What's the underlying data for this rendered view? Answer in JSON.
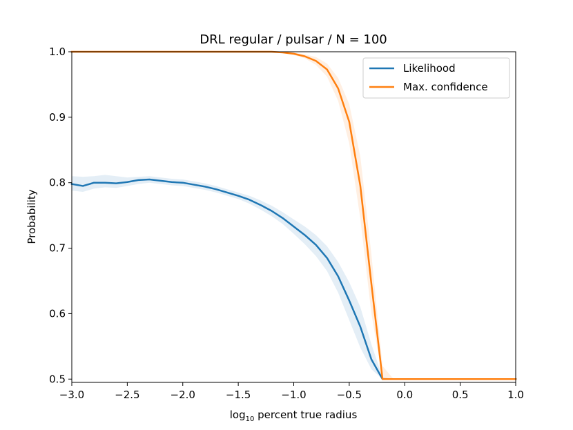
{
  "chart_data": {
    "type": "line",
    "title": "DRL regular / pulsar / N = 100",
    "xlabel_main": "log",
    "xlabel_sub": "10",
    "xlabel_rest": " percent true radius",
    "ylabel": "Probability",
    "xlim": [
      -3.0,
      1.0
    ],
    "ylim": [
      0.495,
      1.0
    ],
    "xticks": [
      -3.0,
      -2.5,
      -2.0,
      -1.5,
      -1.0,
      -0.5,
      0.0,
      0.5,
      1.0
    ],
    "xtick_labels": [
      "−3.0",
      "−2.5",
      "−2.0",
      "−1.5",
      "−1.0",
      "−0.5",
      "0.0",
      "0.5",
      "1.0"
    ],
    "yticks": [
      0.5,
      0.6,
      0.7,
      0.8,
      0.9,
      1.0
    ],
    "ytick_labels": [
      "0.5",
      "0.6",
      "0.7",
      "0.8",
      "0.9",
      "1.0"
    ],
    "legend_position": "top-right",
    "series": [
      {
        "name": "Likelihood",
        "color": "#1f77b4",
        "x": [
          -3.0,
          -2.9,
          -2.8,
          -2.7,
          -2.6,
          -2.5,
          -2.4,
          -2.3,
          -2.2,
          -2.1,
          -2.0,
          -1.9,
          -1.8,
          -1.7,
          -1.6,
          -1.5,
          -1.4,
          -1.3,
          -1.2,
          -1.1,
          -1.0,
          -0.9,
          -0.8,
          -0.7,
          -0.6,
          -0.5,
          -0.4,
          -0.3,
          -0.2,
          -0.1,
          0.0,
          0.1,
          0.2,
          0.3,
          0.4,
          0.5,
          0.6,
          0.7,
          0.8,
          0.9,
          1.0
        ],
        "y": [
          0.798,
          0.795,
          0.8,
          0.8,
          0.799,
          0.801,
          0.804,
          0.805,
          0.803,
          0.801,
          0.8,
          0.797,
          0.794,
          0.79,
          0.785,
          0.78,
          0.774,
          0.766,
          0.757,
          0.746,
          0.733,
          0.72,
          0.705,
          0.685,
          0.657,
          0.62,
          0.58,
          0.53,
          0.5,
          0.5,
          0.5,
          0.5,
          0.5,
          0.5,
          0.5,
          0.5,
          0.5,
          0.5,
          0.5,
          0.5,
          0.5
        ],
        "band_lower": [
          0.788,
          0.786,
          0.791,
          0.793,
          0.792,
          0.795,
          0.798,
          0.8,
          0.798,
          0.796,
          0.795,
          0.792,
          0.789,
          0.785,
          0.78,
          0.775,
          0.768,
          0.759,
          0.749,
          0.737,
          0.722,
          0.706,
          0.688,
          0.665,
          0.632,
          0.59,
          0.548,
          0.515,
          0.5,
          0.5,
          0.5,
          0.5,
          0.5,
          0.5,
          0.5,
          0.5,
          0.5,
          0.5,
          0.5,
          0.5,
          0.5
        ],
        "band_upper": [
          0.81,
          0.809,
          0.81,
          0.812,
          0.81,
          0.808,
          0.809,
          0.81,
          0.808,
          0.806,
          0.805,
          0.802,
          0.799,
          0.795,
          0.79,
          0.785,
          0.78,
          0.773,
          0.765,
          0.755,
          0.744,
          0.733,
          0.72,
          0.703,
          0.679,
          0.648,
          0.61,
          0.553,
          0.503,
          0.5,
          0.5,
          0.5,
          0.5,
          0.5,
          0.5,
          0.5,
          0.5,
          0.5,
          0.5,
          0.5,
          0.5
        ]
      },
      {
        "name": "Max. confidence",
        "color": "#ff7f0e",
        "x": [
          -3.0,
          -2.9,
          -2.8,
          -2.7,
          -2.6,
          -2.5,
          -2.4,
          -2.3,
          -2.2,
          -2.1,
          -2.0,
          -1.9,
          -1.8,
          -1.7,
          -1.6,
          -1.5,
          -1.4,
          -1.3,
          -1.2,
          -1.1,
          -1.0,
          -0.9,
          -0.8,
          -0.7,
          -0.6,
          -0.5,
          -0.4,
          -0.3,
          -0.2,
          -0.1,
          0.0,
          0.1,
          0.2,
          0.3,
          0.4,
          0.5,
          0.6,
          0.7,
          0.8,
          0.9,
          1.0
        ],
        "y": [
          1.0,
          1.0,
          1.0,
          1.0,
          1.0,
          1.0,
          1.0,
          1.0,
          1.0,
          1.0,
          1.0,
          1.0,
          1.0,
          1.0,
          1.0,
          1.0,
          1.0,
          1.0,
          1.0,
          0.999,
          0.997,
          0.993,
          0.986,
          0.973,
          0.944,
          0.893,
          0.795,
          0.645,
          0.5,
          0.5,
          0.5,
          0.5,
          0.5,
          0.5,
          0.5,
          0.5,
          0.5,
          0.5,
          0.5,
          0.5,
          0.5
        ],
        "band_lower": [
          1.0,
          1.0,
          1.0,
          1.0,
          1.0,
          1.0,
          1.0,
          1.0,
          1.0,
          1.0,
          1.0,
          1.0,
          1.0,
          1.0,
          1.0,
          1.0,
          1.0,
          1.0,
          0.999,
          0.998,
          0.995,
          0.99,
          0.98,
          0.962,
          0.925,
          0.86,
          0.745,
          0.6,
          0.5,
          0.5,
          0.5,
          0.5,
          0.5,
          0.5,
          0.5,
          0.5,
          0.5,
          0.5,
          0.5,
          0.5,
          0.5
        ],
        "band_upper": [
          1.0,
          1.0,
          1.0,
          1.0,
          1.0,
          1.0,
          1.0,
          1.0,
          1.0,
          1.0,
          1.0,
          1.0,
          1.0,
          1.0,
          1.0,
          1.0,
          1.0,
          1.0,
          1.0,
          1.0,
          0.999,
          0.996,
          0.992,
          0.982,
          0.96,
          0.92,
          0.84,
          0.69,
          0.52,
          0.5,
          0.5,
          0.5,
          0.5,
          0.5,
          0.5,
          0.5,
          0.5,
          0.5,
          0.5,
          0.5,
          0.5
        ]
      }
    ]
  }
}
